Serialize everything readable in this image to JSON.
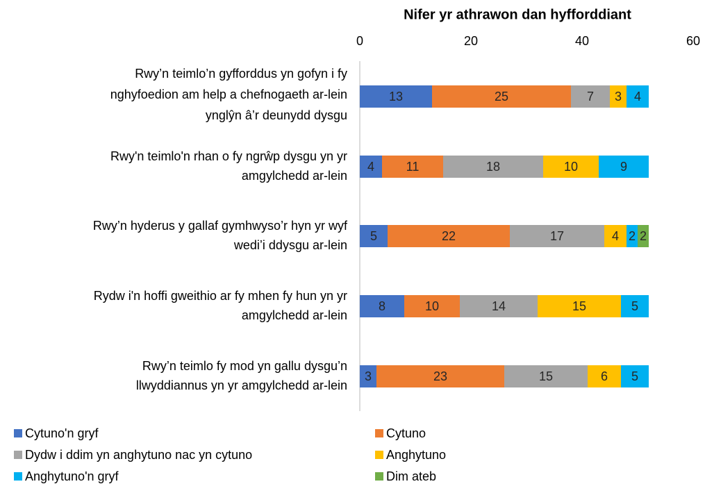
{
  "chart_data": {
    "type": "stacked_bar_horizontal",
    "x_label": "Nifer yr athrawon dan hyfforddiant",
    "categories": [
      [
        "Rwy’n teimlo’n gyfforddus yn gofyn i fy",
        "nghyfoedion am help a chefnogaeth ar-lein",
        "ynglŷn â’r deunydd dysgu"
      ],
      [
        "Rwy'n teimlo'n rhan o fy ngrŵp dysgu yn yr",
        "amgylchedd ar-lein"
      ],
      [
        "Rwy’n hyderus y gallaf gymhwyso’r hyn yr wyf",
        "wedi’i ddysgu ar-lein"
      ],
      [
        "Rydw i'n hoffi gweithio ar fy mhen fy hun yn yr",
        "amgylchedd ar-lein"
      ],
      [
        "Rwy’n teimlo fy mod yn gallu dysgu’n",
        "llwyddiannus yn yr amgylchedd ar-lein"
      ]
    ],
    "series": [
      {
        "name": "Cytuno'n gryf",
        "color": "#4472c4",
        "values": [
          13,
          4,
          5,
          8,
          3
        ]
      },
      {
        "name": "Cytuno",
        "color": "#ed7d31",
        "values": [
          25,
          11,
          22,
          10,
          23
        ]
      },
      {
        "name": "Dydw i ddim yn anghytuno nac yn cytuno",
        "color": "#a5a5a5",
        "values": [
          7,
          18,
          17,
          14,
          15
        ]
      },
      {
        "name": "Anghytuno",
        "color": "#ffc000",
        "values": [
          3,
          10,
          4,
          15,
          6
        ]
      },
      {
        "name": "Anghytuno'n gryf",
        "color": "#00b0f0",
        "values": [
          4,
          9,
          2,
          5,
          5
        ]
      },
      {
        "name": "Dim ateb",
        "color": "#70ad47",
        "values": [
          0,
          0,
          2,
          0,
          0
        ]
      }
    ],
    "xlim": [
      0,
      60
    ],
    "xticks": [
      0,
      20,
      40,
      60
    ],
    "x_axis_position": "top",
    "grid": false,
    "legend": "bottom"
  }
}
